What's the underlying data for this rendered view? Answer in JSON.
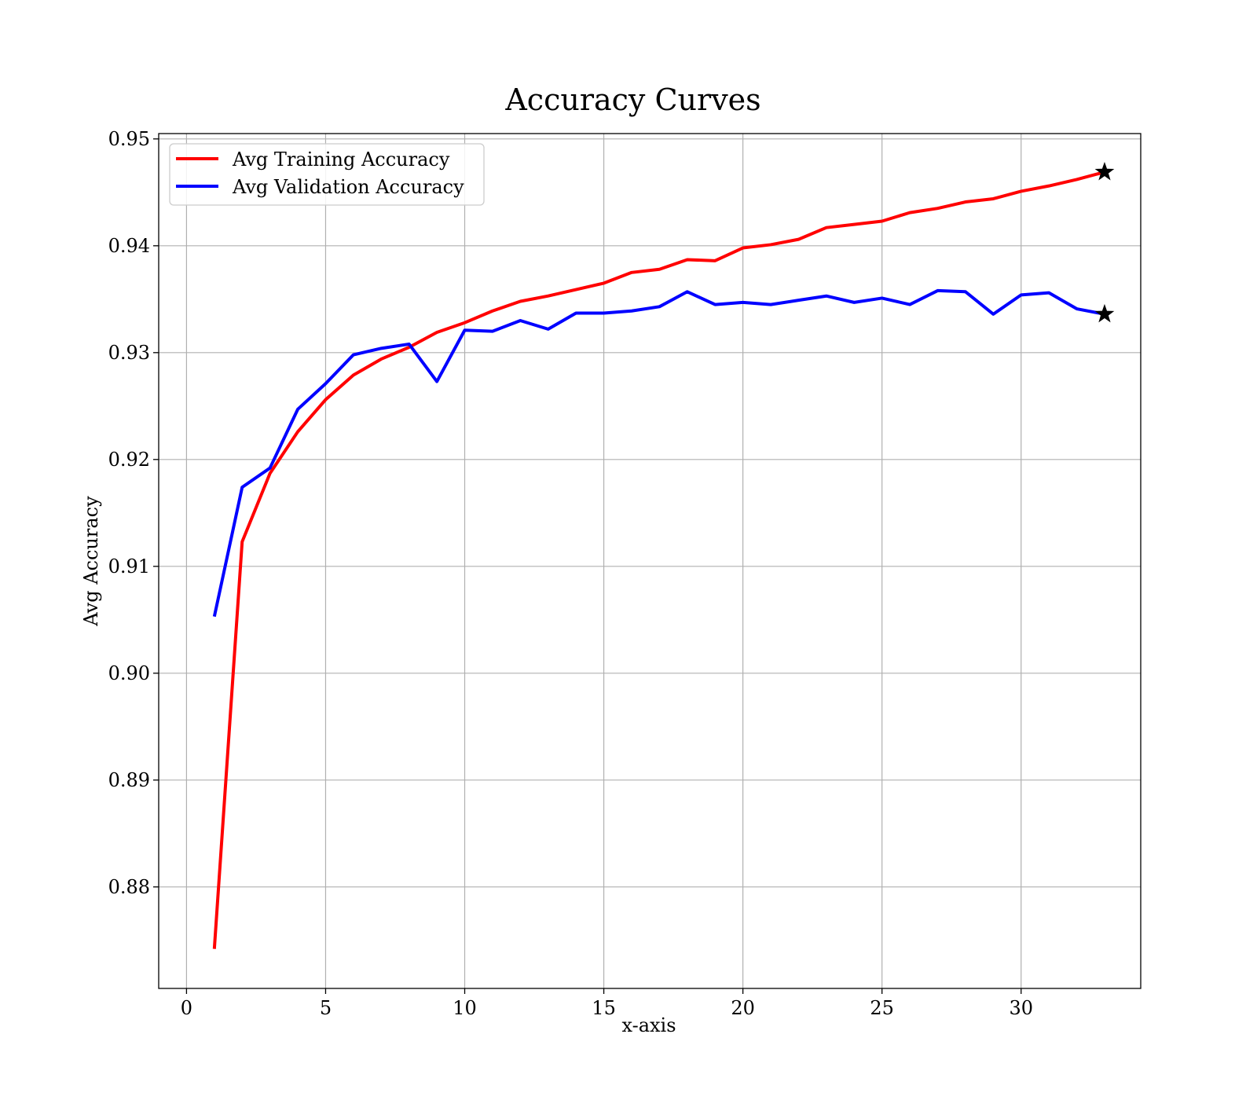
{
  "chart_data": {
    "type": "line",
    "title": "Accuracy Curves",
    "xlabel": "x-axis",
    "ylabel": "Avg Accuracy",
    "xlim": [
      -1,
      34.3
    ],
    "ylim": [
      0.8705,
      0.9505
    ],
    "xticks": [
      0,
      5,
      10,
      15,
      20,
      25,
      30
    ],
    "yticks": [
      0.88,
      0.89,
      0.9,
      0.91,
      0.92,
      0.93,
      0.94,
      0.95
    ],
    "ytick_labels": [
      "0.88",
      "0.89",
      "0.90",
      "0.91",
      "0.92",
      "0.93",
      "0.94",
      "0.95"
    ],
    "grid": true,
    "legend_position": "top-left",
    "x": [
      1,
      2,
      3,
      4,
      5,
      6,
      7,
      8,
      9,
      10,
      11,
      12,
      13,
      14,
      15,
      16,
      17,
      18,
      19,
      20,
      21,
      22,
      23,
      24,
      25,
      26,
      27,
      28,
      29,
      30,
      31,
      32,
      33
    ],
    "series": [
      {
        "name": "Avg Training Accuracy",
        "color": "#ff0000",
        "values": [
          0.8742,
          0.9123,
          0.9187,
          0.9226,
          0.9256,
          0.9279,
          0.9294,
          0.9305,
          0.9319,
          0.9328,
          0.9339,
          0.9348,
          0.9353,
          0.9359,
          0.9365,
          0.9375,
          0.9378,
          0.9387,
          0.9386,
          0.9398,
          0.9401,
          0.9406,
          0.9417,
          0.942,
          0.9423,
          0.9431,
          0.9435,
          0.9441,
          0.9444,
          0.9451,
          0.9456,
          0.9462,
          0.9469
        ],
        "end_marker": "star"
      },
      {
        "name": "Avg Validation Accuracy",
        "color": "#0000ff",
        "values": [
          0.9053,
          0.9174,
          0.9192,
          0.9247,
          0.9271,
          0.9298,
          0.9304,
          0.9308,
          0.9273,
          0.9321,
          0.932,
          0.933,
          0.9322,
          0.9337,
          0.9337,
          0.9339,
          0.9343,
          0.9357,
          0.9345,
          0.9347,
          0.9345,
          0.9349,
          0.9353,
          0.9347,
          0.9351,
          0.9345,
          0.9358,
          0.9357,
          0.9336,
          0.9354,
          0.9356,
          0.9341,
          0.9336
        ],
        "end_marker": "star"
      }
    ],
    "marker_color": "#000000"
  }
}
